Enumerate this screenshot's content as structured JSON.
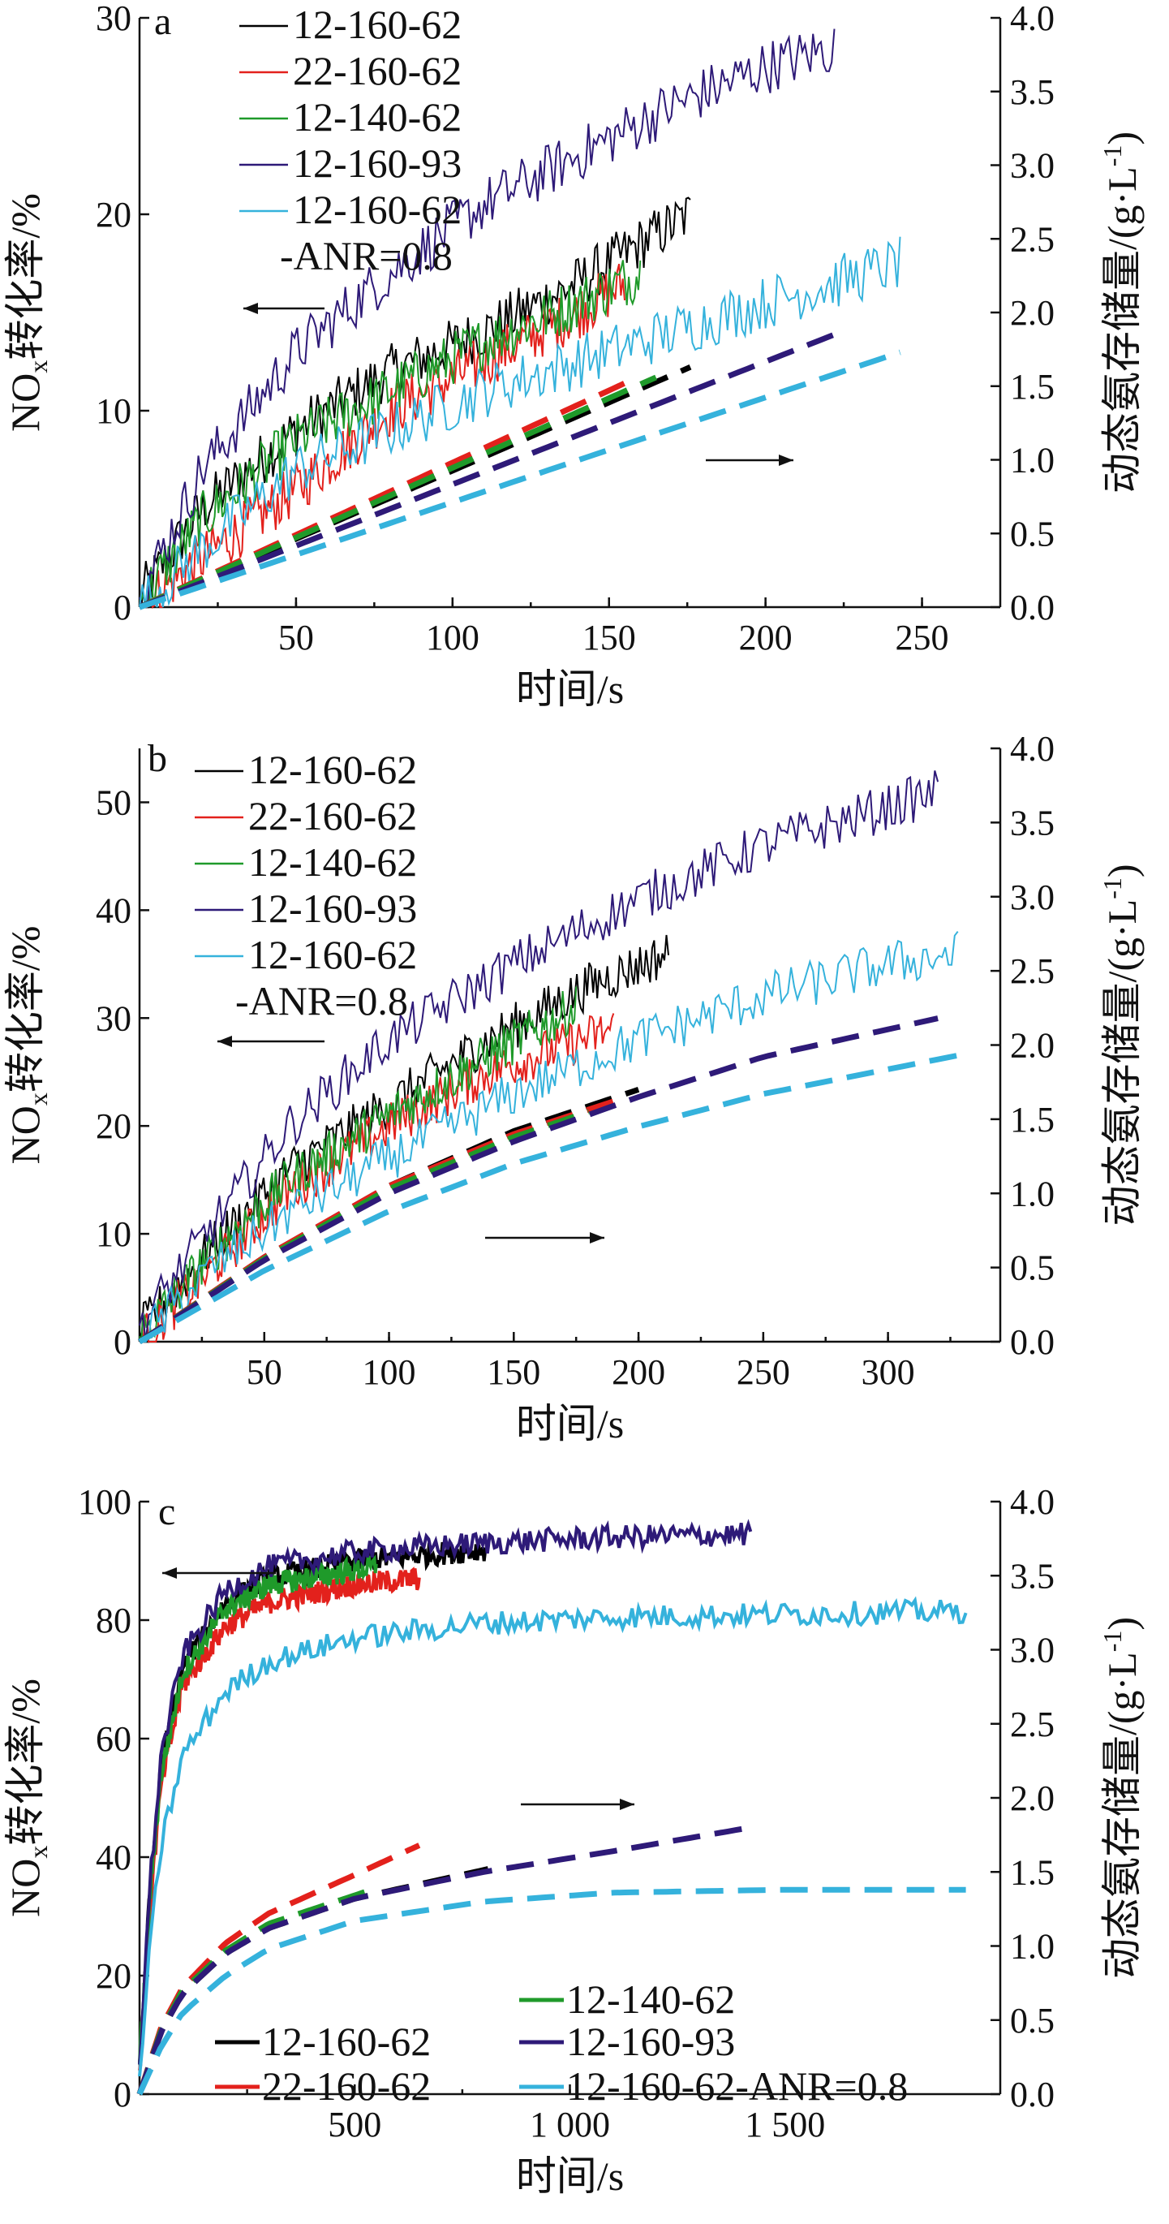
{
  "figure": {
    "x_title": "时间/s",
    "y_left_title": "NOx转化率/%",
    "y_right_title": "动态氨存储量/(g·L⁻¹)"
  },
  "colors": {
    "12-160-62": "#000000",
    "22-160-62": "#e3211c",
    "12-140-62": "#1f9a2a",
    "12-160-93": "#2e1a78",
    "12-160-62-ANR=0.8": "#35b2dc"
  },
  "chart_data": [
    {
      "panel": "a",
      "type": "line",
      "xlabel": "时间/s",
      "ylabel_left": "NOx转化率/%",
      "ylabel_right": "动态氨存储量/(g·L-1)",
      "xlim": [
        0,
        275
      ],
      "ylim_left": [
        0,
        30
      ],
      "ylim_right": [
        0,
        4
      ],
      "x_ticks": [
        "50",
        "100",
        "150",
        "200",
        "250"
      ],
      "y_left_ticks": [
        "0",
        "10",
        "20",
        "30"
      ],
      "y_right_ticks": [
        "0.0",
        "0.5",
        "1.0",
        "1.5",
        "2.0",
        "2.5",
        "3.0",
        "3.5",
        "4.0"
      ],
      "legend": [
        "12-160-62",
        "22-160-62",
        "12-140-62",
        "12-160-93",
        "12-160-62",
        "-ANR=0.8"
      ],
      "legend_position": "top-left",
      "conversion_series": [
        {
          "name": "12-160-62",
          "axis": "left",
          "points": [
            [
              0,
              0.5
            ],
            [
              20,
              5
            ],
            [
              50,
              9
            ],
            [
              80,
              12
            ],
            [
              110,
              14
            ],
            [
              140,
              16.5
            ],
            [
              160,
              18.5
            ],
            [
              176,
              20
            ]
          ]
        },
        {
          "name": "22-160-62",
          "axis": "left",
          "points": [
            [
              0,
              0
            ],
            [
              20,
              2.5
            ],
            [
              50,
              6
            ],
            [
              80,
              10
            ],
            [
              110,
              12.5
            ],
            [
              140,
              15
            ],
            [
              155,
              16.5
            ]
          ]
        },
        {
          "name": "12-140-62",
          "axis": "left",
          "points": [
            [
              0,
              0.3
            ],
            [
              20,
              4.5
            ],
            [
              50,
              8.5
            ],
            [
              80,
              11
            ],
            [
              110,
              13.5
            ],
            [
              140,
              15.5
            ],
            [
              160,
              17
            ]
          ]
        },
        {
          "name": "12-160-93",
          "axis": "left",
          "points": [
            [
              0,
              0.5
            ],
            [
              20,
              7
            ],
            [
              50,
              13
            ],
            [
              80,
              17
            ],
            [
              110,
              20.5
            ],
            [
              140,
              23
            ],
            [
              170,
              25.5
            ],
            [
              200,
              27.5
            ],
            [
              222,
              28.5
            ]
          ]
        },
        {
          "name": "12-160-62-ANR=0.8",
          "axis": "left",
          "points": [
            [
              0,
              0
            ],
            [
              20,
              3
            ],
            [
              50,
              7
            ],
            [
              80,
              9
            ],
            [
              110,
              11
            ],
            [
              140,
              12.5
            ],
            [
              170,
              14
            ],
            [
              200,
              15.5
            ],
            [
              243,
              17.5
            ]
          ]
        }
      ],
      "storage_series": [
        {
          "name": "12-160-62",
          "axis": "right",
          "points": [
            [
              0,
              0
            ],
            [
              176,
              1.63
            ]
          ]
        },
        {
          "name": "22-160-62",
          "axis": "right",
          "points": [
            [
              0,
              0
            ],
            [
              155,
              1.52
            ]
          ]
        },
        {
          "name": "12-140-62",
          "axis": "right",
          "points": [
            [
              0,
              0
            ],
            [
              165,
              1.56
            ]
          ]
        },
        {
          "name": "12-160-93",
          "axis": "right",
          "points": [
            [
              0,
              0
            ],
            [
              222,
              1.85
            ]
          ]
        },
        {
          "name": "12-160-62-ANR=0.8",
          "axis": "right",
          "points": [
            [
              0,
              0
            ],
            [
              243,
              1.73
            ]
          ]
        }
      ]
    },
    {
      "panel": "b",
      "type": "line",
      "xlabel": "时间/s",
      "ylabel_left": "NOx转化率/%",
      "ylabel_right": "动态氨存储量/(g·L-1)",
      "xlim": [
        0,
        345
      ],
      "ylim_left": [
        0,
        55
      ],
      "ylim_right": [
        0,
        4
      ],
      "x_ticks": [
        "50",
        "100",
        "150",
        "200",
        "250",
        "300"
      ],
      "y_left_ticks": [
        "0",
        "10",
        "20",
        "30",
        "40",
        "50"
      ],
      "y_right_ticks": [
        "0.0",
        "0.5",
        "1.0",
        "1.5",
        "2.0",
        "2.5",
        "3.0",
        "3.5",
        "4.0"
      ],
      "legend": [
        "12-160-62",
        "22-160-62",
        "12-140-62",
        "12-160-93",
        "12-160-62",
        "-ANR=0.8"
      ],
      "legend_position": "top-left",
      "conversion_series": [
        {
          "name": "12-160-62",
          "axis": "left",
          "points": [
            [
              0,
              1
            ],
            [
              30,
              9
            ],
            [
              60,
              16
            ],
            [
              100,
              22
            ],
            [
              140,
              28
            ],
            [
              180,
              33
            ],
            [
              212,
              36
            ]
          ]
        },
        {
          "name": "22-160-62",
          "axis": "left",
          "points": [
            [
              0,
              0
            ],
            [
              30,
              7
            ],
            [
              60,
              14
            ],
            [
              100,
              20
            ],
            [
              140,
              25
            ],
            [
              190,
              29
            ]
          ]
        },
        {
          "name": "12-140-62",
          "axis": "left",
          "points": [
            [
              0,
              0.5
            ],
            [
              30,
              8.5
            ],
            [
              60,
              15
            ],
            [
              100,
              21
            ],
            [
              140,
              26.5
            ],
            [
              175,
              31
            ]
          ]
        },
        {
          "name": "12-160-93",
          "axis": "left",
          "points": [
            [
              0,
              1.5
            ],
            [
              30,
              11
            ],
            [
              60,
              20
            ],
            [
              100,
              28
            ],
            [
              150,
              35
            ],
            [
              200,
              41
            ],
            [
              250,
              46
            ],
            [
              300,
              49.5
            ],
            [
              320,
              51
            ]
          ]
        },
        {
          "name": "12-160-62-ANR=0.8",
          "axis": "left",
          "points": [
            [
              0,
              0
            ],
            [
              30,
              7
            ],
            [
              60,
              12
            ],
            [
              100,
              17
            ],
            [
              150,
              23
            ],
            [
              200,
              28
            ],
            [
              250,
              32
            ],
            [
              300,
              35
            ],
            [
              328,
              36
            ]
          ]
        }
      ],
      "storage_series": [
        {
          "name": "12-160-62",
          "axis": "right",
          "points": [
            [
              0,
              0
            ],
            [
              50,
              0.57
            ],
            [
              100,
              1.05
            ],
            [
              150,
              1.42
            ],
            [
              200,
              1.7
            ]
          ]
        },
        {
          "name": "22-160-62",
          "axis": "right",
          "points": [
            [
              0,
              0
            ],
            [
              50,
              0.57
            ],
            [
              100,
              1.05
            ],
            [
              150,
              1.4
            ],
            [
              190,
              1.62
            ]
          ]
        },
        {
          "name": "12-140-62",
          "axis": "right",
          "points": [
            [
              0,
              0
            ],
            [
              50,
              0.56
            ],
            [
              100,
              1.03
            ],
            [
              150,
              1.38
            ],
            [
              180,
              1.55
            ]
          ]
        },
        {
          "name": "12-160-93",
          "axis": "right",
          "points": [
            [
              0,
              0
            ],
            [
              50,
              0.55
            ],
            [
              100,
              1.0
            ],
            [
              150,
              1.35
            ],
            [
              200,
              1.65
            ],
            [
              250,
              1.92
            ],
            [
              320,
              2.18
            ]
          ]
        },
        {
          "name": "12-160-62-ANR=0.8",
          "axis": "right",
          "points": [
            [
              0,
              0
            ],
            [
              50,
              0.48
            ],
            [
              100,
              0.88
            ],
            [
              150,
              1.2
            ],
            [
              200,
              1.45
            ],
            [
              250,
              1.67
            ],
            [
              328,
              1.93
            ]
          ]
        }
      ]
    },
    {
      "panel": "c",
      "type": "line",
      "xlabel": "时间/s",
      "ylabel_left": "NOx转化率/%",
      "ylabel_right": "动态氨存储量/(g·L-1)",
      "xlim": [
        0,
        2000
      ],
      "ylim_left": [
        0,
        100
      ],
      "ylim_right": [
        0,
        4
      ],
      "x_ticks": [
        "500",
        "1 000",
        "1 500"
      ],
      "y_left_ticks": [
        "0",
        "20",
        "40",
        "60",
        "80",
        "100"
      ],
      "y_right_ticks": [
        "0.0",
        "0.5",
        "1.0",
        "1.5",
        "2.0",
        "2.5",
        "3.0",
        "3.5",
        "4.0"
      ],
      "legend": [
        "12-160-62",
        "22-160-62",
        "12-140-62",
        "12-160-93",
        "12-160-62-ANR=0.8"
      ],
      "legend_position": "bottom",
      "conversion_series": [
        {
          "name": "12-160-62",
          "axis": "left",
          "points": [
            [
              0,
              5
            ],
            [
              25,
              35
            ],
            [
              50,
              55
            ],
            [
              100,
              72
            ],
            [
              200,
              83
            ],
            [
              300,
              87
            ],
            [
              500,
              90
            ],
            [
              810,
              92
            ]
          ]
        },
        {
          "name": "22-160-62",
          "axis": "left",
          "points": [
            [
              0,
              4
            ],
            [
              25,
              32
            ],
            [
              50,
              52
            ],
            [
              100,
              69
            ],
            [
              200,
              79
            ],
            [
              300,
              83
            ],
            [
              500,
              86
            ],
            [
              650,
              87
            ]
          ]
        },
        {
          "name": "12-140-62",
          "axis": "left",
          "points": [
            [
              0,
              5
            ],
            [
              25,
              34
            ],
            [
              50,
              54
            ],
            [
              100,
              71
            ],
            [
              200,
              82
            ],
            [
              300,
              86
            ],
            [
              550,
              89
            ]
          ]
        },
        {
          "name": "12-160-93",
          "axis": "left",
          "points": [
            [
              0,
              5
            ],
            [
              25,
              36
            ],
            [
              50,
              57
            ],
            [
              100,
              74
            ],
            [
              200,
              85
            ],
            [
              300,
              89
            ],
            [
              500,
              91.5
            ],
            [
              800,
              93
            ],
            [
              1100,
              94
            ],
            [
              1420,
              94.5
            ]
          ]
        },
        {
          "name": "12-160-62-ANR=0.8",
          "axis": "left",
          "points": [
            [
              0,
              3
            ],
            [
              25,
              25
            ],
            [
              50,
              42
            ],
            [
              100,
              57
            ],
            [
              200,
              68
            ],
            [
              300,
              73
            ],
            [
              500,
              77
            ],
            [
              800,
              79.5
            ],
            [
              1100,
              80.5
            ],
            [
              1500,
              81
            ],
            [
              1920,
              81.5
            ]
          ]
        }
      ],
      "storage_series": [
        {
          "name": "12-160-62",
          "axis": "right",
          "points": [
            [
              0,
              0
            ],
            [
              50,
              0.42
            ],
            [
              100,
              0.68
            ],
            [
              200,
              0.95
            ],
            [
              300,
              1.12
            ],
            [
              500,
              1.32
            ],
            [
              810,
              1.52
            ]
          ]
        },
        {
          "name": "22-160-62",
          "axis": "right",
          "points": [
            [
              0,
              0
            ],
            [
              50,
              0.45
            ],
            [
              100,
              0.72
            ],
            [
              200,
              1.02
            ],
            [
              300,
              1.22
            ],
            [
              500,
              1.48
            ],
            [
              650,
              1.68
            ]
          ]
        },
        {
          "name": "12-140-62",
          "axis": "right",
          "points": [
            [
              0,
              0
            ],
            [
              50,
              0.43
            ],
            [
              100,
              0.7
            ],
            [
              200,
              0.97
            ],
            [
              300,
              1.15
            ],
            [
              550,
              1.39
            ]
          ]
        },
        {
          "name": "12-160-93",
          "axis": "right",
          "points": [
            [
              0,
              0
            ],
            [
              50,
              0.42
            ],
            [
              100,
              0.68
            ],
            [
              200,
              0.95
            ],
            [
              300,
              1.12
            ],
            [
              500,
              1.32
            ],
            [
              800,
              1.5
            ],
            [
              1100,
              1.64
            ],
            [
              1420,
              1.8
            ]
          ]
        },
        {
          "name": "12-160-62-ANR=0.8",
          "axis": "right",
          "points": [
            [
              0,
              0
            ],
            [
              50,
              0.32
            ],
            [
              100,
              0.55
            ],
            [
              200,
              0.8
            ],
            [
              300,
              0.98
            ],
            [
              500,
              1.17
            ],
            [
              800,
              1.3
            ],
            [
              1100,
              1.36
            ],
            [
              1500,
              1.38
            ],
            [
              1920,
              1.38
            ]
          ]
        }
      ]
    }
  ]
}
